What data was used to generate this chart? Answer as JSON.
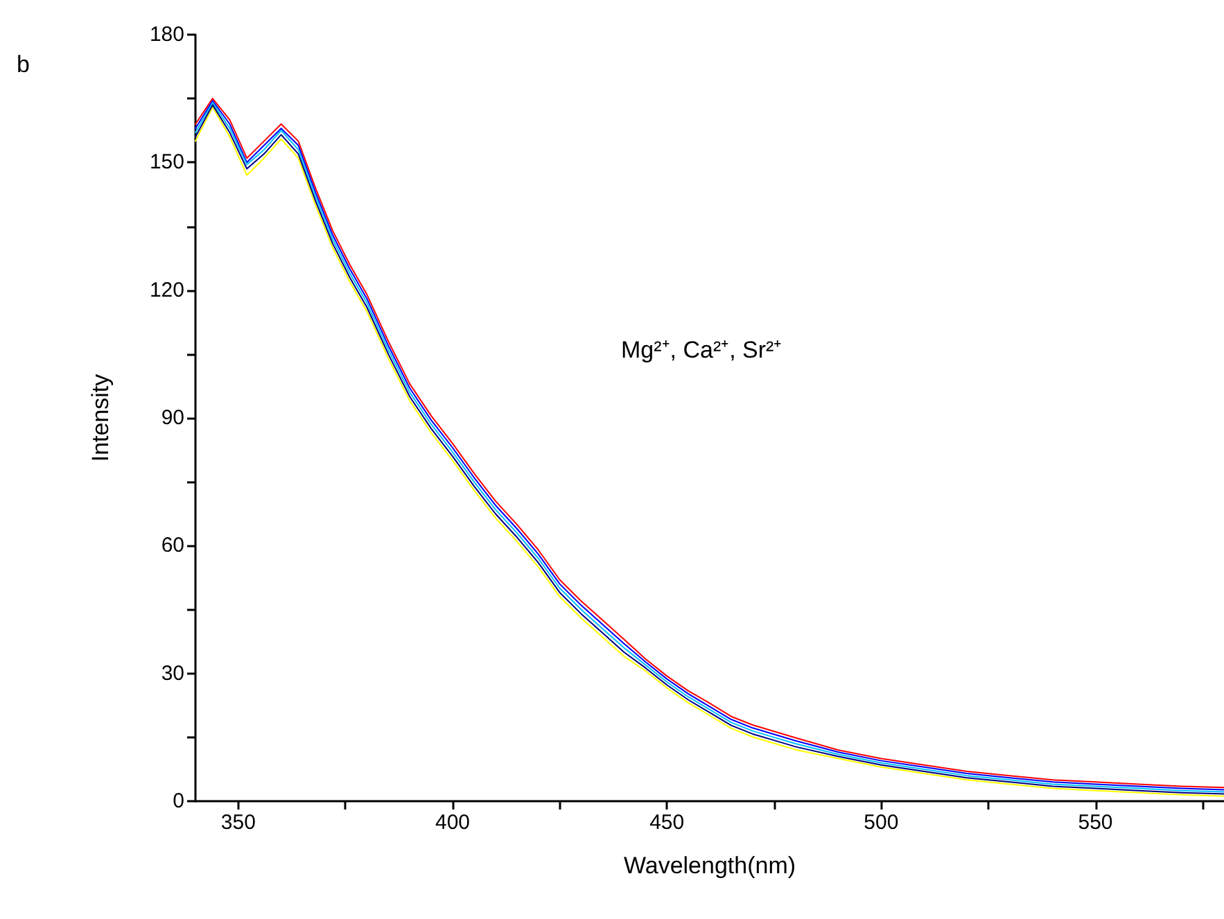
{
  "chart_data": {
    "type": "line",
    "xlabel": "Wavelength(nm)",
    "ylabel": "Intensity",
    "annotations": [
      "b",
      "Mg²⁺, Ca²⁺, Sr²⁺"
    ],
    "x": [
      340,
      344,
      348,
      352,
      356,
      360,
      364,
      368,
      372,
      376,
      380,
      385,
      390,
      395,
      400,
      405,
      410,
      415,
      420,
      425,
      430,
      435,
      440,
      445,
      450,
      455,
      460,
      465,
      470,
      475,
      480,
      490,
      500,
      510,
      520,
      530,
      540,
      550,
      560,
      570,
      580
    ],
    "series": [
      {
        "color": "#ffff00",
        "values": [
          155,
          163,
          156,
          147,
          151,
          155.5,
          151,
          140,
          130,
          122,
          115,
          104,
          94,
          86.5,
          80,
          73,
          66.5,
          61,
          55,
          48,
          43,
          38.5,
          34,
          30.6,
          26.6,
          23.1,
          20.1,
          17.1,
          15.1,
          13.6,
          12.1,
          10,
          8,
          6.5,
          5,
          4,
          3,
          2.5,
          2,
          1.5,
          1.2
        ]
      },
      {
        "color": "#ff0000",
        "values": [
          159,
          165,
          160,
          151,
          155,
          159,
          155,
          144,
          134,
          126,
          119,
          108,
          98,
          90.5,
          84,
          77,
          70.5,
          65,
          59,
          52,
          47,
          42.5,
          38,
          33.4,
          29.4,
          25.9,
          23,
          19.9,
          17.9,
          16.4,
          14.9,
          12,
          10,
          8.5,
          7,
          6,
          5,
          4.5,
          4,
          3.5,
          3.2
        ]
      },
      {
        "color": "#0000ff",
        "values": [
          158,
          164.5,
          159,
          150,
          154,
          158,
          154,
          143,
          133,
          125,
          118,
          107,
          97,
          89.5,
          83,
          76,
          69.5,
          64,
          58,
          51,
          46,
          41.5,
          37,
          32.7,
          28.7,
          25.2,
          22.2,
          19.2,
          17.2,
          15.7,
          14.2,
          11.5,
          9.5,
          8,
          6.5,
          5.5,
          4.5,
          4,
          3.5,
          3,
          2.7
        ]
      },
      {
        "color": "#00c0ff",
        "values": [
          157,
          164,
          158,
          149.5,
          153,
          157.5,
          153,
          142,
          132,
          124,
          117,
          106,
          96,
          88.5,
          82,
          75,
          68.5,
          63,
          57,
          50,
          45,
          40.5,
          36,
          32,
          28,
          24.5,
          21.5,
          18.5,
          16.5,
          15,
          13.5,
          11,
          9,
          7.5,
          6,
          5,
          4,
          3.5,
          3,
          2.5,
          2.2
        ]
      },
      {
        "color": "#000080",
        "values": [
          156,
          163.5,
          157,
          148.5,
          152,
          156.5,
          152,
          141,
          131,
          123,
          116,
          105,
          95,
          87.5,
          81,
          74,
          67.5,
          62,
          56,
          49,
          44,
          39.5,
          35,
          31.3,
          27.3,
          23.8,
          20.8,
          17.8,
          15.8,
          14.3,
          12.8,
          10.5,
          8.5,
          7,
          5.5,
          4.5,
          3.5,
          3,
          2.5,
          2,
          1.7
        ]
      }
    ],
    "xlim": [
      340,
      580
    ],
    "xticks": [
      350,
      {
        "value": 375,
        "label": null
      },
      400,
      {
        "value": 425,
        "label": null
      },
      450,
      {
        "value": 475,
        "label": null
      },
      500,
      {
        "value": 525,
        "label": null
      },
      550,
      {
        "value": 575,
        "label": null
      }
    ],
    "ylim": [
      0,
      180
    ],
    "yticks": [
      0,
      {
        "value": 15,
        "label": null
      },
      30,
      {
        "value": 45,
        "label": null
      },
      60,
      {
        "value": 75,
        "label": null
      },
      90,
      {
        "value": 105,
        "label": null
      },
      120,
      {
        "value": 135,
        "label": null
      },
      150,
      {
        "value": 165,
        "label": null
      },
      180
    ],
    "grid": false,
    "marker": "none",
    "line_style": "solid"
  }
}
